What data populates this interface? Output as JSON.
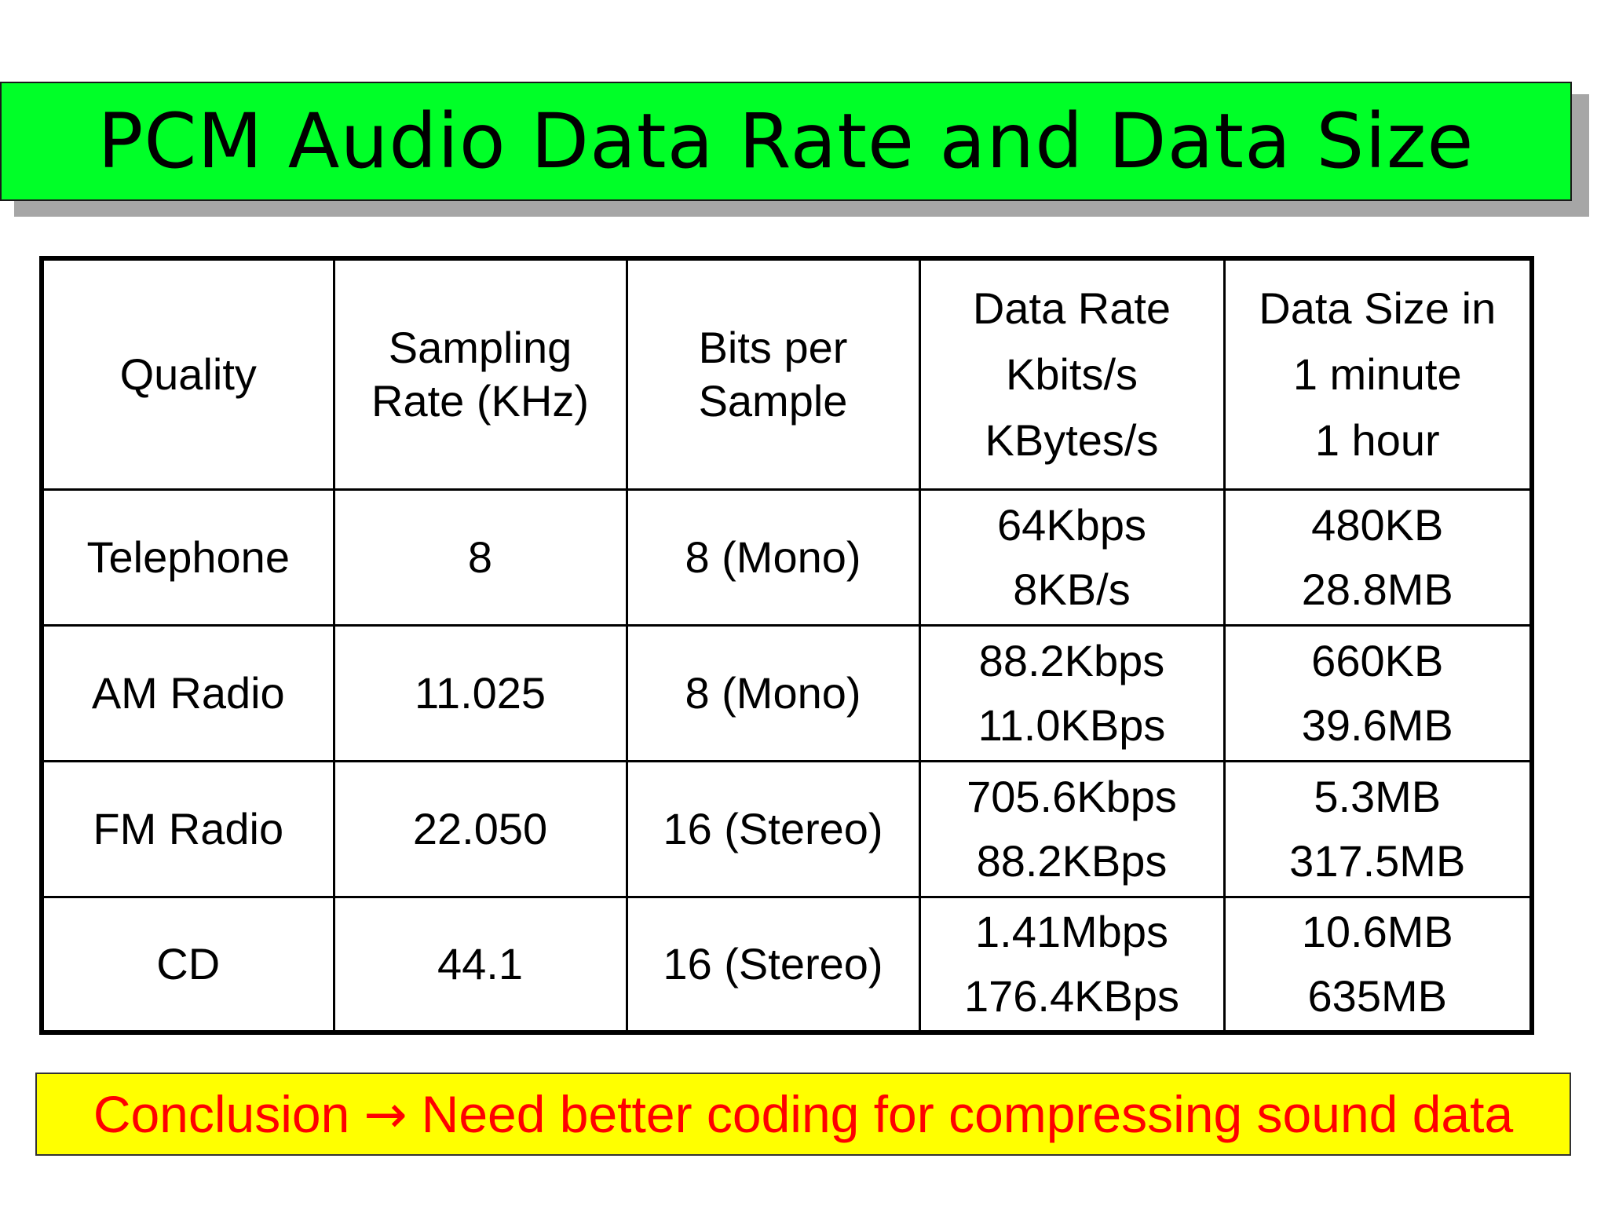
{
  "slide": {
    "title": "PCM Audio Data Rate and Data Size",
    "title_bg_color": "#00ff28",
    "conclusion": {
      "label": "Conclusion",
      "arrow": "→",
      "text": "Need better coding for compressing sound data",
      "text_color": "#ff0000",
      "bg_color": "#ffff00"
    }
  },
  "table": {
    "headers": {
      "quality": "Quality",
      "sampling_line1": "Sampling",
      "sampling_line2": "Rate (KHz)",
      "bits_line1": "Bits per",
      "bits_line2": "Sample",
      "rate_line1": "Data Rate",
      "rate_line2": "Kbits/s",
      "rate_line3": "KBytes/s",
      "size_line1": "Data Size in",
      "size_line2": "1 minute",
      "size_line3": "1 hour"
    },
    "rows": [
      {
        "quality": "Telephone",
        "sampling": "8",
        "bits": "8 (Mono)",
        "rate_kbits": "64Kbps",
        "rate_kbytes": "8KB/s",
        "size_minute": "480KB",
        "size_hour": "28.8MB"
      },
      {
        "quality": "AM Radio",
        "sampling": "11.025",
        "bits": "8 (Mono)",
        "rate_kbits": "88.2Kbps",
        "rate_kbytes": "11.0KBps",
        "size_minute": "660KB",
        "size_hour": "39.6MB"
      },
      {
        "quality": "FM Radio",
        "sampling": "22.050",
        "bits": "16 (Stereo)",
        "rate_kbits": "705.6Kbps",
        "rate_kbytes": "88.2KBps",
        "size_minute": "5.3MB",
        "size_hour": "317.5MB"
      },
      {
        "quality": "CD",
        "sampling": "44.1",
        "bits": "16 (Stereo)",
        "rate_kbits": "1.41Mbps",
        "rate_kbytes": "176.4KBps",
        "size_minute": "10.6MB",
        "size_hour": "635MB"
      }
    ]
  }
}
